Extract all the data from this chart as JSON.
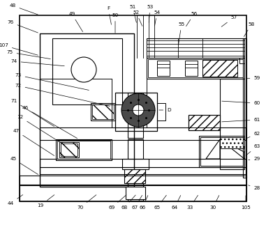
{
  "fig_width": 3.81,
  "fig_height": 3.23,
  "dpi": 100,
  "bg_color": "#ffffff"
}
